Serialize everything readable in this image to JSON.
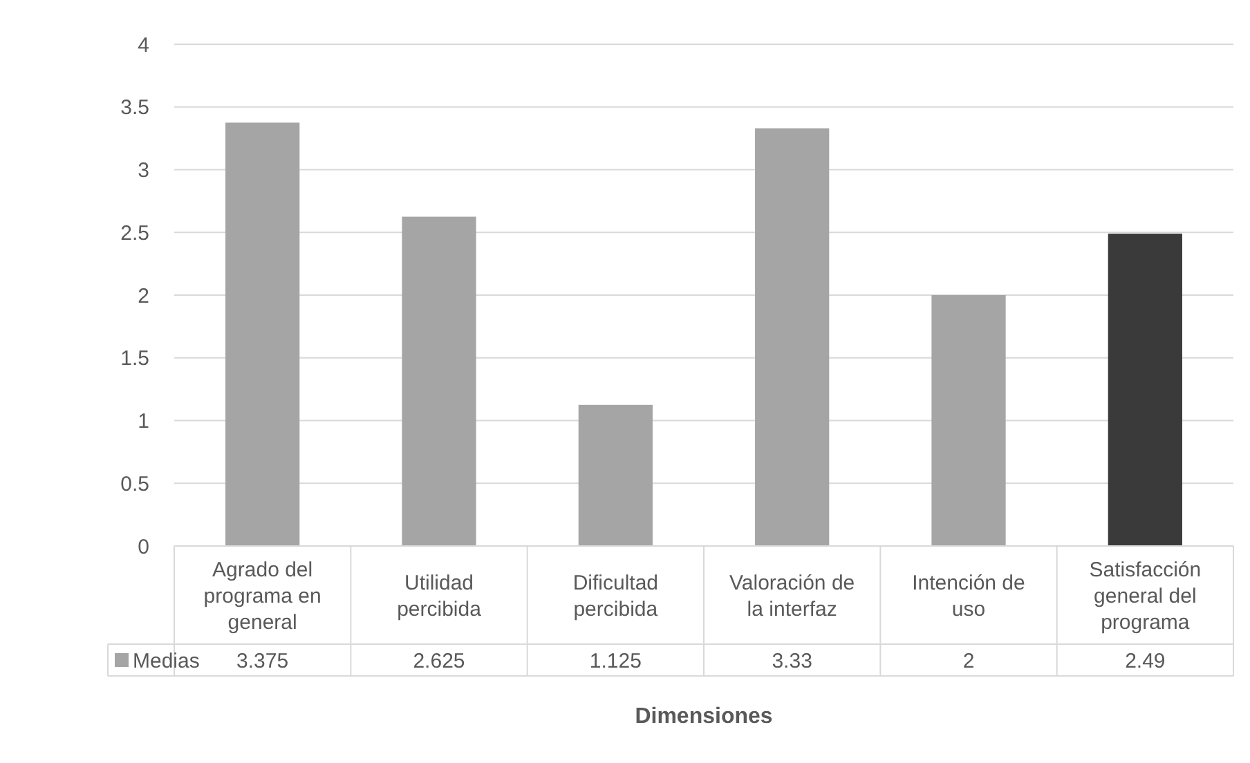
{
  "chart_data": {
    "type": "bar",
    "xlabel": "Dimensiones",
    "categories": [
      "Agrado del programa en general",
      "Utilidad percibida",
      "Dificultad percibida",
      "Valoración de la interfaz",
      "Intención de uso",
      "Satisfacción general del programa"
    ],
    "series": [
      {
        "name": "Medias",
        "color": "#a5a5a5",
        "colors": [
          "#a5a5a5",
          "#a5a5a5",
          "#a5a5a5",
          "#a5a5a5",
          "#a5a5a5",
          "#3a3a3a"
        ],
        "values": [
          3.375,
          2.625,
          1.125,
          3.33,
          2,
          2.49
        ]
      }
    ],
    "value_labels": [
      "3.375",
      "2.625",
      "1.125",
      "3.33",
      "2",
      "2.49"
    ],
    "ylim": [
      0,
      4
    ],
    "yticks": [
      0,
      0.5,
      1,
      1.5,
      2,
      2.5,
      3,
      3.5,
      4
    ],
    "grid": "y",
    "legend": "bottom left",
    "data_labels": true
  }
}
